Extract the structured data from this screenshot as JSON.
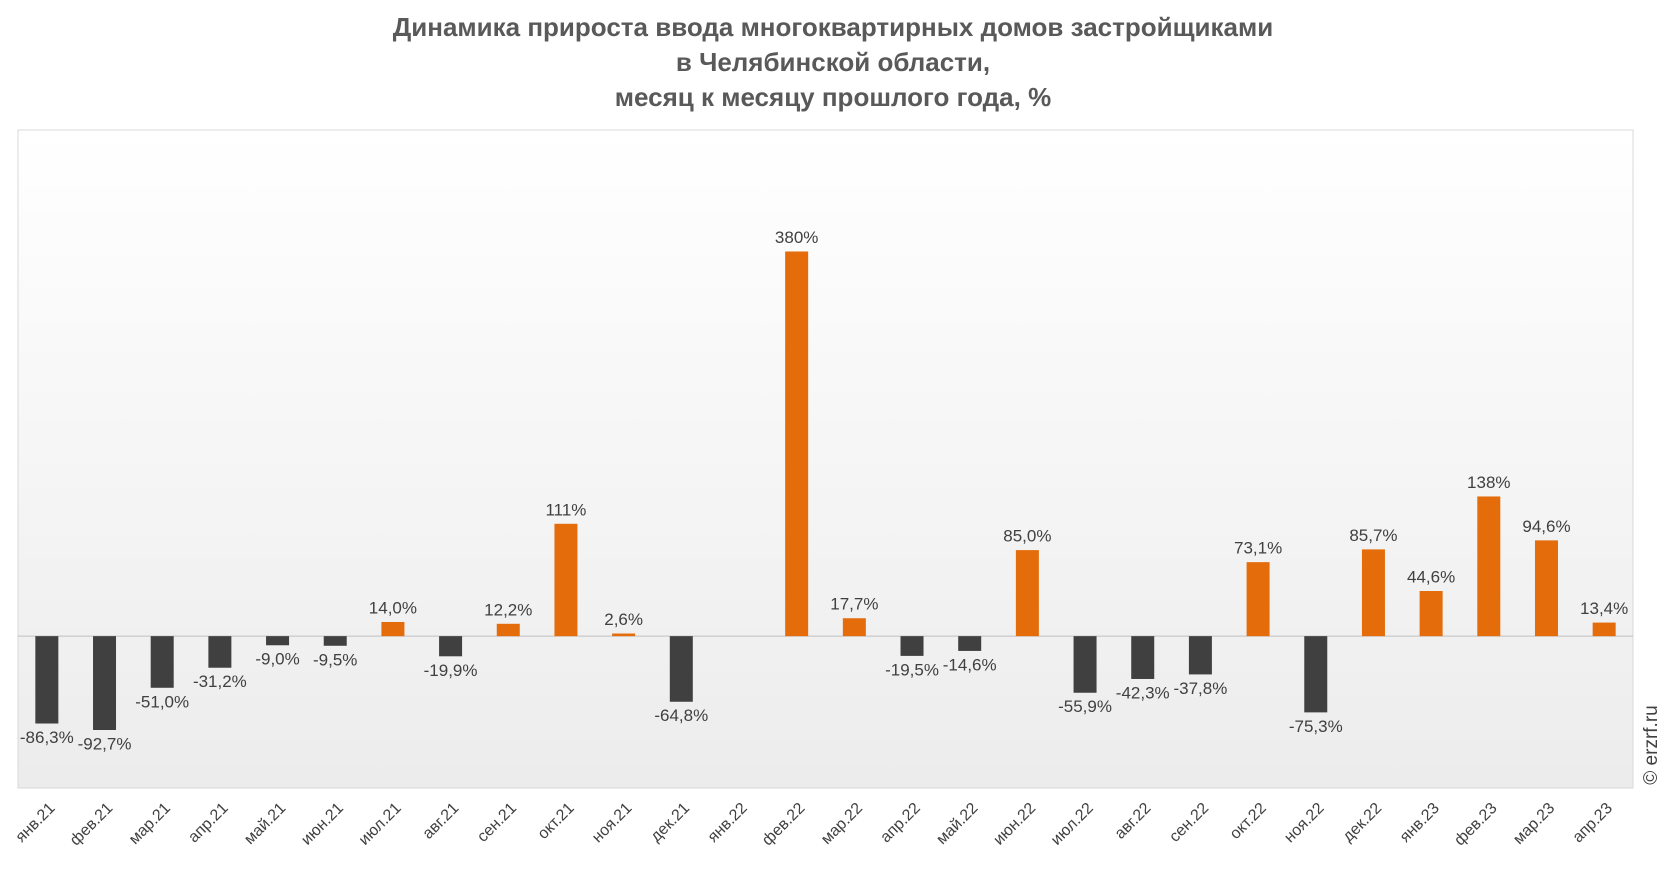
{
  "chart_data": {
    "type": "bar",
    "title": [
      "Динамика прироста ввода многоквартирных домов застройщиками",
      "в Челябинской области,",
      "месяц к месяцу прошлого года, %"
    ],
    "categories": [
      "янв.21",
      "фев.21",
      "мар.21",
      "апр.21",
      "май.21",
      "июн.21",
      "июл.21",
      "авг.21",
      "сен.21",
      "окт.21",
      "ноя.21",
      "дек.21",
      "янв.22",
      "фев.22",
      "мар.22",
      "апр.22",
      "май.22",
      "июн.22",
      "июл.22",
      "авг.22",
      "сен.22",
      "окт.22",
      "ноя.22",
      "дек.22",
      "янв.23",
      "фев.23",
      "мар.23",
      "апр.23"
    ],
    "values": [
      -86.3,
      -92.7,
      -51.0,
      -31.2,
      -9.0,
      -9.5,
      14.0,
      -19.9,
      12.2,
      111,
      2.6,
      -64.8,
      null,
      380,
      17.7,
      -19.5,
      -14.6,
      85.0,
      -55.9,
      -42.3,
      -37.8,
      73.1,
      -75.3,
      85.7,
      44.6,
      138,
      94.6,
      13.4
    ],
    "value_labels": [
      "-86,3%",
      "-92,7%",
      "-51,0%",
      "-31,2%",
      "-9,0%",
      "-9,5%",
      "14,0%",
      "-19,9%",
      "12,2%",
      "111%",
      "2,6%",
      "-64,8%",
      null,
      "380%",
      "17,7%",
      "-19,5%",
      "-14,6%",
      "85,0%",
      "-55,9%",
      "-42,3%",
      "-37,8%",
      "73,1%",
      "-75,3%",
      "85,7%",
      "44,6%",
      "138%",
      "94,6%",
      "13,4%"
    ],
    "positive_color": "#e46c0a",
    "negative_color": "#404040",
    "ylim": [
      -150,
      500
    ],
    "watermark": "© erzrf.ru"
  }
}
